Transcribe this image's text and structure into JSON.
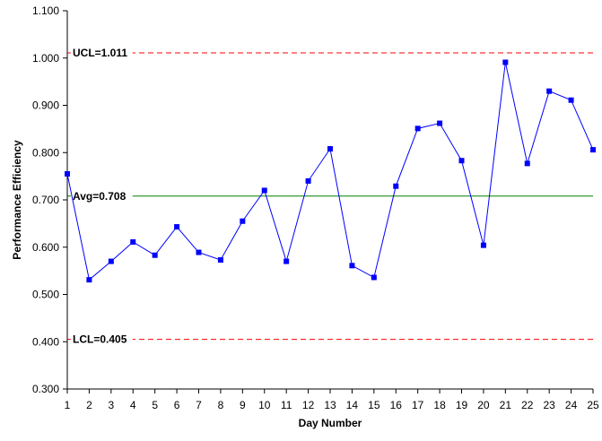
{
  "chart_data": {
    "type": "line",
    "title": "",
    "xlabel": "Day Number",
    "ylabel": "Performance Efficiency",
    "ylim": [
      0.3,
      1.1
    ],
    "xlim": [
      1,
      25
    ],
    "y_ticks": [
      "0.300",
      "0.400",
      "0.500",
      "0.600",
      "0.700",
      "0.800",
      "0.900",
      "1.000",
      "1.100"
    ],
    "x_ticks": [
      "1",
      "2",
      "3",
      "4",
      "5",
      "6",
      "7",
      "8",
      "9",
      "10",
      "11",
      "12",
      "13",
      "14",
      "15",
      "16",
      "17",
      "18",
      "19",
      "20",
      "21",
      "22",
      "23",
      "24",
      "25"
    ],
    "grid": false,
    "legend": "none",
    "series": [
      {
        "color": "#0000ff",
        "marker": "square",
        "x": [
          1,
          2,
          3,
          4,
          5,
          6,
          7,
          8,
          9,
          10,
          11,
          12,
          13,
          14,
          15,
          16,
          17,
          18,
          19,
          20,
          21,
          22,
          23,
          24,
          25
        ],
        "values": [
          0.755,
          0.531,
          0.57,
          0.611,
          0.583,
          0.643,
          0.589,
          0.573,
          0.655,
          0.72,
          0.57,
          0.74,
          0.808,
          0.561,
          0.536,
          0.729,
          0.851,
          0.862,
          0.783,
          0.604,
          0.991,
          0.777,
          0.93,
          0.911,
          0.806
        ]
      }
    ],
    "reference_lines": [
      {
        "label": "UCL=1.011",
        "value": 1.011,
        "color": "#ff0000",
        "style": "dashed"
      },
      {
        "label": "Avg=0.708",
        "value": 0.708,
        "color": "#008000",
        "style": "solid"
      },
      {
        "label": "LCL=0.405",
        "value": 0.405,
        "color": "#ff0000",
        "style": "dashed"
      }
    ]
  }
}
